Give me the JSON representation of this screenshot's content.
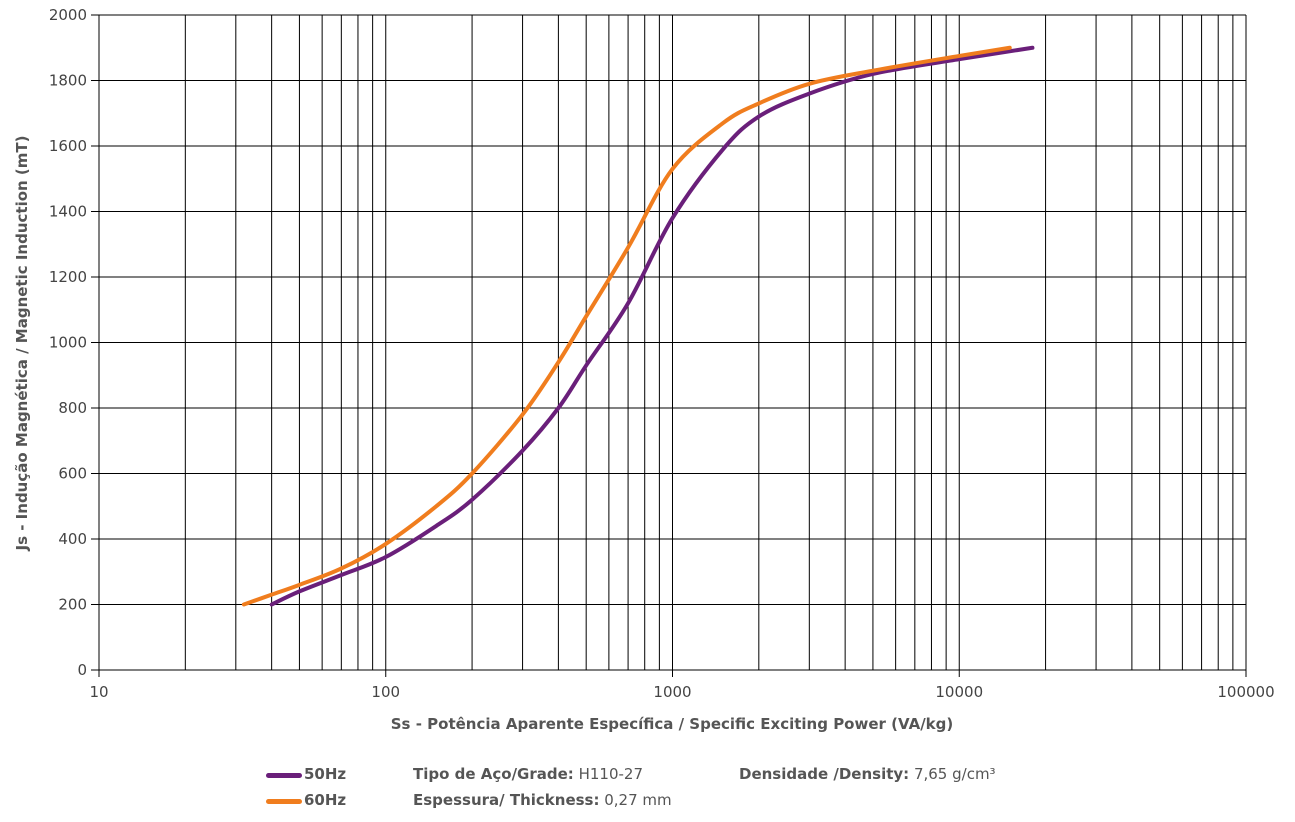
{
  "chart_data": {
    "type": "line",
    "x_scale": "log",
    "xlim": [
      10,
      100000
    ],
    "ylim": [
      0,
      2000
    ],
    "x_ticks": [
      "10",
      "100",
      "1000",
      "10000",
      "100000"
    ],
    "y_ticks": [
      "0",
      "200",
      "400",
      "600",
      "800",
      "1000",
      "1200",
      "1400",
      "1600",
      "1800",
      "2000"
    ],
    "xlabel": "Ss - Potência Aparente Específica / Specific Exciting Power (VA/kg)",
    "ylabel": "Js - Indução Magnética / Magnetic Induction (mT)",
    "grid": true,
    "legend_position": "bottom",
    "series": [
      {
        "name": "50Hz",
        "color": "#6a1f7a",
        "x": [
          40,
          50,
          70,
          100,
          150,
          200,
          300,
          400,
          500,
          700,
          1000,
          1500,
          2000,
          3000,
          5000,
          10000,
          18000
        ],
        "y": [
          200,
          240,
          290,
          345,
          440,
          520,
          670,
          800,
          930,
          1120,
          1380,
          1590,
          1690,
          1760,
          1820,
          1865,
          1900
        ]
      },
      {
        "name": "60Hz",
        "color": "#f07d1e",
        "x": [
          32,
          40,
          50,
          70,
          100,
          150,
          200,
          300,
          400,
          500,
          700,
          1000,
          1500,
          2000,
          3000,
          5000,
          10000,
          15000
        ],
        "y": [
          200,
          230,
          260,
          310,
          385,
          500,
          600,
          780,
          940,
          1080,
          1290,
          1530,
          1670,
          1730,
          1790,
          1830,
          1875,
          1900
        ]
      }
    ]
  },
  "info": {
    "grade_label": "Tipo de Aço/Grade:",
    "grade_value": "H110-27",
    "thickness_label": "Espessura/ Thickness:",
    "thickness_value": "0,27 mm",
    "density_label": "Densidade /Density:",
    "density_value": "7,65 g/cm³"
  }
}
